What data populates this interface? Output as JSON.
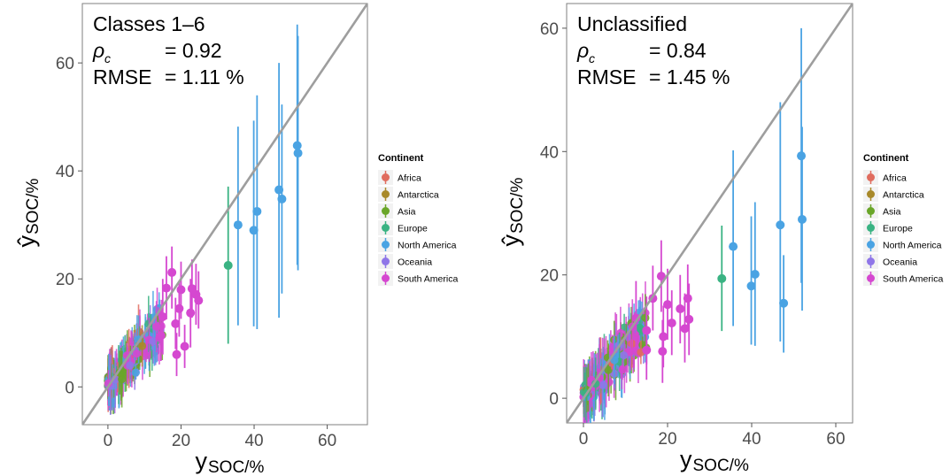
{
  "colors": {
    "Africa": "#e06c5e",
    "Antarctica": "#a8892a",
    "Asia": "#6aa629",
    "Europe": "#3ab383",
    "North America": "#4aa3e3",
    "Oceania": "#8f76e8",
    "South America": "#d548d0"
  },
  "chart_data": [
    {
      "type": "scatter",
      "title": "Classes 1–6",
      "stats": {
        "rho_label": "ρ",
        "rho_sub": "c",
        "rho_value": "= 0.92",
        "rmse_label": "RMSE",
        "rmse_value": "= 1.11 %"
      },
      "xlabel": "y",
      "xlabel_sub": "SOC/%",
      "ylabel": "ŷ",
      "ylabel_sub": "SOC/%",
      "xlim": [
        -7,
        71
      ],
      "ylim": [
        -7,
        71
      ],
      "xticks": [
        0,
        20,
        40,
        60
      ],
      "yticks": [
        0,
        20,
        40,
        60
      ],
      "identity_line": true,
      "legend": {
        "title": "Continent",
        "entries": [
          "Africa",
          "Antarctica",
          "Asia",
          "Europe",
          "North America",
          "Oceania",
          "South America"
        ],
        "placement": "right"
      },
      "series": [
        {
          "name": "North America",
          "points": [
            [
              35.6,
              30.0,
              11.4,
              48.2
            ],
            [
              39.9,
              29.0,
              11.2,
              49.3
            ],
            [
              40.8,
              32.5,
              10.7,
              54.0
            ],
            [
              46.8,
              36.5,
              12.8,
              60.0
            ],
            [
              47.6,
              34.8,
              17.3,
              52.3
            ],
            [
              51.8,
              44.7,
              22.6,
              67.1
            ],
            [
              52.0,
              43.3,
              21.6,
              65.0
            ]
          ]
        },
        {
          "name": "Europe",
          "points": [
            [
              32.9,
              22.5,
              8.0,
              37.1
            ]
          ]
        },
        {
          "name": "South America",
          "points": [
            [
              17.5,
              21.2,
              14.5,
              26.0
            ],
            [
              20.0,
              18.0,
              12.6,
              23.2
            ],
            [
              23.0,
              18.2,
              12.8,
              23.6
            ],
            [
              24.1,
              17.1,
              11.5,
              22.8
            ],
            [
              24.8,
              16.0,
              10.8,
              21.4
            ],
            [
              22.6,
              13.7,
              7.3,
              20.0
            ],
            [
              16.0,
              18.3,
              12.5,
              24.2
            ],
            [
              19.5,
              14.5,
              9.3,
              19.7
            ],
            [
              15.0,
              13.0,
              6.0,
              20.0
            ],
            [
              18.5,
              11.7,
              7.0,
              16.5
            ],
            [
              14.5,
              9.5,
              4.8,
              14.3
            ],
            [
              21.0,
              7.5,
              3.5,
              11.5
            ],
            [
              18.8,
              6.0,
              2.0,
              10.0
            ]
          ]
        }
      ],
      "cluster": {
        "x_range": [
          0,
          15
        ],
        "y_range": [
          0,
          13
        ],
        "note": "dense cluster of low-SOC samples from all continents"
      }
    },
    {
      "type": "scatter",
      "title": "Unclassified",
      "stats": {
        "rho_label": "ρ",
        "rho_sub": "c",
        "rho_value": "= 0.84",
        "rmse_label": "RMSE",
        "rmse_value": "= 1.45 %"
      },
      "xlabel": "y",
      "xlabel_sub": "SOC/%",
      "ylabel": "ŷ",
      "ylabel_sub": "SOC/%",
      "xlim": [
        -4,
        64
      ],
      "ylim": [
        -4,
        64
      ],
      "xticks": [
        0,
        20,
        40,
        60
      ],
      "yticks": [
        0,
        20,
        40,
        60
      ],
      "identity_line": true,
      "legend": {
        "title": "Continent",
        "entries": [
          "Africa",
          "Antarctica",
          "Asia",
          "Europe",
          "North America",
          "Oceania",
          "South America"
        ],
        "placement": "right"
      },
      "series": [
        {
          "name": "North America",
          "points": [
            [
              35.6,
              24.6,
              11.7,
              40.2
            ],
            [
              39.9,
              18.2,
              8.7,
              29.5
            ],
            [
              40.8,
              20.1,
              8.5,
              31.8
            ],
            [
              46.8,
              28.1,
              9.2,
              48.0
            ],
            [
              47.6,
              15.4,
              7.4,
              23.2
            ],
            [
              51.8,
              39.3,
              18.7,
              60.0
            ],
            [
              52.0,
              29.0,
              14.2,
              44.0
            ]
          ]
        },
        {
          "name": "Europe",
          "points": [
            [
              32.9,
              19.4,
              10.9,
              28.0
            ]
          ]
        },
        {
          "name": "South America",
          "points": [
            [
              18.5,
              19.8,
              14.0,
              25.6
            ],
            [
              16.5,
              16.2,
              11.0,
              21.5
            ],
            [
              20.0,
              15.2,
              9.5,
              21.0
            ],
            [
              23.0,
              14.5,
              8.9,
              20.0
            ],
            [
              24.8,
              16.2,
              10.9,
              21.7
            ],
            [
              25.1,
              12.8,
              7.0,
              18.6
            ],
            [
              21.0,
              12.2,
              7.0,
              17.5
            ],
            [
              24.1,
              11.3,
              5.8,
              17.0
            ],
            [
              19.0,
              10.0,
              5.0,
              15.0
            ],
            [
              18.8,
              7.6,
              2.5,
              12.7
            ],
            [
              15.0,
              11.0,
              5.5,
              16.5
            ],
            [
              12.5,
              13.0,
              7.0,
              19.0
            ],
            [
              15.0,
              7.8,
              3.0,
              12.5
            ]
          ]
        }
      ],
      "cluster": {
        "x_range": [
          0,
          15
        ],
        "y_range": [
          0,
          13
        ],
        "note": "dense cluster of low-SOC samples from all continents"
      }
    }
  ]
}
